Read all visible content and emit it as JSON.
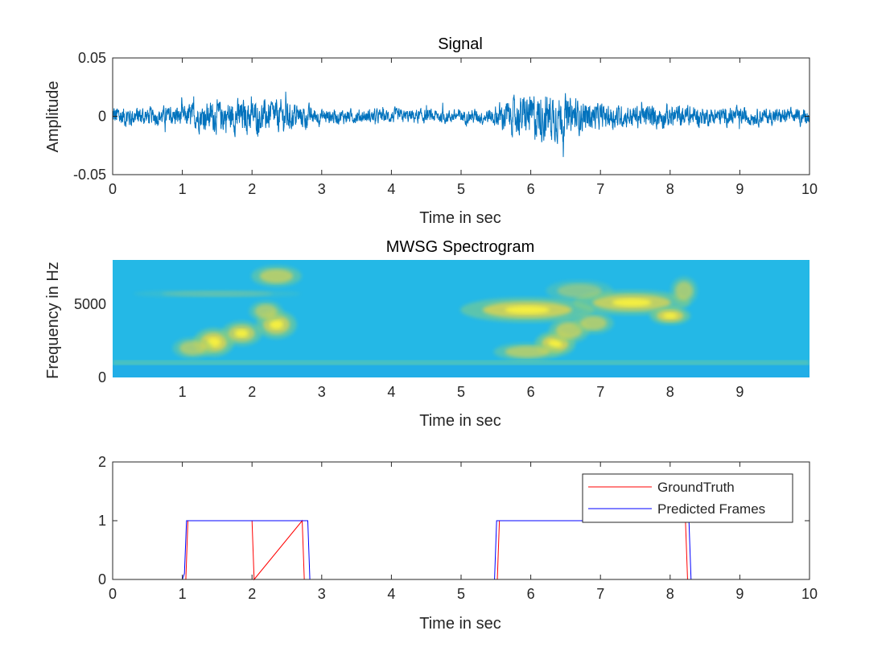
{
  "chart_data": [
    {
      "type": "line",
      "title": "Signal",
      "xlabel": "Time in sec",
      "ylabel": "Amplitude",
      "xlim": [
        0,
        10
      ],
      "ylim": [
        -0.05,
        0.05
      ],
      "xticks": [
        "0",
        "1",
        "2",
        "3",
        "4",
        "5",
        "6",
        "7",
        "8",
        "9",
        "10"
      ],
      "yticks": [
        "-0.05",
        "0",
        "0.05"
      ],
      "color": "#0072BD",
      "envelope": {
        "t": [
          0,
          0.3,
          0.6,
          0.9,
          1.2,
          1.5,
          1.8,
          2.1,
          2.4,
          2.7,
          3.0,
          3.5,
          4.0,
          4.5,
          5.0,
          5.4,
          5.6,
          5.9,
          6.2,
          6.4,
          6.6,
          7.0,
          7.5,
          8.0,
          8.5,
          9.0,
          9.5,
          10.0
        ],
        "amp": [
          0.012,
          0.01,
          0.009,
          0.01,
          0.013,
          0.016,
          0.017,
          0.015,
          0.016,
          0.012,
          0.008,
          0.007,
          0.007,
          0.007,
          0.007,
          0.008,
          0.015,
          0.02,
          0.025,
          0.022,
          0.018,
          0.012,
          0.011,
          0.012,
          0.009,
          0.009,
          0.008,
          0.007
        ]
      }
    },
    {
      "type": "heatmap",
      "title": "MWSG Spectrogram",
      "xlabel": "Time in sec",
      "ylabel": "Frequency in Hz",
      "xlim": [
        0,
        10
      ],
      "ylim": [
        0,
        8000
      ],
      "xticks": [
        "1",
        "2",
        "3",
        "4",
        "5",
        "6",
        "7",
        "8",
        "9"
      ],
      "yticks": [
        "0",
        "5000"
      ],
      "background": "#24B8E6",
      "band_hz": 1000,
      "blobs": [
        {
          "t": 1.45,
          "f": 2400,
          "st": 0.12,
          "sf": 400,
          "a": 1.0
        },
        {
          "t": 1.15,
          "f": 2000,
          "st": 0.12,
          "sf": 300,
          "a": 0.7
        },
        {
          "t": 1.85,
          "f": 3000,
          "st": 0.12,
          "sf": 350,
          "a": 0.85
        },
        {
          "t": 2.35,
          "f": 3600,
          "st": 0.12,
          "sf": 400,
          "a": 0.9
        },
        {
          "t": 2.2,
          "f": 4500,
          "st": 0.1,
          "sf": 300,
          "a": 0.7
        },
        {
          "t": 2.35,
          "f": 6900,
          "st": 0.15,
          "sf": 300,
          "a": 0.8
        },
        {
          "t": 1.5,
          "f": 5700,
          "st": 0.5,
          "sf": 120,
          "a": 0.3
        },
        {
          "t": 5.95,
          "f": 4600,
          "st": 0.4,
          "sf": 350,
          "a": 0.95
        },
        {
          "t": 6.35,
          "f": 2300,
          "st": 0.12,
          "sf": 350,
          "a": 1.0
        },
        {
          "t": 5.95,
          "f": 1750,
          "st": 0.2,
          "sf": 250,
          "a": 0.75
        },
        {
          "t": 6.55,
          "f": 3200,
          "st": 0.12,
          "sf": 350,
          "a": 0.8
        },
        {
          "t": 6.9,
          "f": 3700,
          "st": 0.12,
          "sf": 300,
          "a": 0.75
        },
        {
          "t": 7.45,
          "f": 5100,
          "st": 0.35,
          "sf": 350,
          "a": 0.9
        },
        {
          "t": 8.0,
          "f": 4200,
          "st": 0.12,
          "sf": 250,
          "a": 1.0
        },
        {
          "t": 8.2,
          "f": 5900,
          "st": 0.08,
          "sf": 400,
          "a": 0.7
        },
        {
          "t": 6.7,
          "f": 5900,
          "st": 0.2,
          "sf": 300,
          "a": 0.5
        }
      ]
    },
    {
      "type": "line",
      "xlabel": "Time in sec",
      "xlim": [
        0,
        10
      ],
      "ylim": [
        0,
        2
      ],
      "xticks": [
        "0",
        "1",
        "2",
        "3",
        "4",
        "5",
        "6",
        "7",
        "8",
        "9",
        "10"
      ],
      "yticks": [
        "0",
        "1",
        "2"
      ],
      "legend_position": "top-right",
      "series": [
        {
          "name": "GroundTruth",
          "color": "#FF0000",
          "x": [
            0,
            1.05,
            1.08,
            2.0,
            2.03,
            2.72,
            2.75,
            5.52,
            5.55,
            8.22,
            8.25,
            10
          ],
          "y": [
            0,
            0,
            1,
            1,
            0,
            1,
            0,
            0,
            1,
            1,
            0,
            0
          ]
        },
        {
          "name": "Predicted Frames",
          "color": "#0000FF",
          "x": [
            0,
            1.0,
            1.03,
            1.06,
            2.03,
            2.06,
            2.8,
            2.83,
            5.48,
            5.51,
            8.27,
            8.3,
            10
          ],
          "y": [
            0,
            0,
            0.1,
            1,
            1,
            1,
            1,
            0,
            0,
            1,
            1,
            0,
            0
          ]
        }
      ]
    }
  ]
}
